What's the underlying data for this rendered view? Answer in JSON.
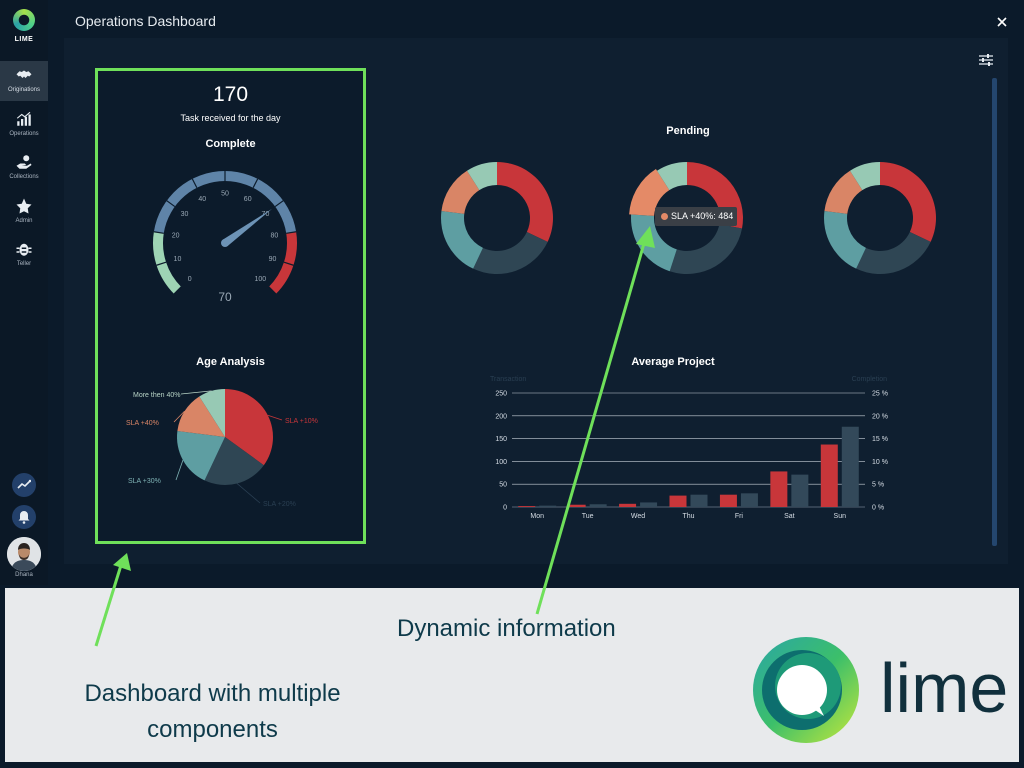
{
  "app": {
    "logo_text": "LIME",
    "window_title": "Operations Dashboard"
  },
  "sidebar": {
    "items": [
      {
        "label": "Originations",
        "icon": "handshake-icon",
        "active": true
      },
      {
        "label": "Operations",
        "icon": "bar-chart-icon",
        "active": false
      },
      {
        "label": "Collections",
        "icon": "hand-coin-icon",
        "active": false
      },
      {
        "label": "Admin",
        "icon": "star-icon",
        "active": false
      },
      {
        "label": "Teller",
        "icon": "bug-icon",
        "active": false
      }
    ],
    "user_name": "Dhana"
  },
  "summary": {
    "task_count": "170",
    "task_label": "Task received for the day"
  },
  "gauge": {
    "title": "Complete",
    "value": 70,
    "min": 0,
    "max": 100,
    "ticks": [
      "0",
      "10",
      "20",
      "30",
      "40",
      "50",
      "60",
      "70",
      "80",
      "90",
      "100"
    ],
    "value_label": "70"
  },
  "age_analysis": {
    "title": "Age Analysis"
  },
  "pending": {
    "title": "Pending",
    "tooltip": "SLA +40%: 484"
  },
  "average_project": {
    "title": "Average Project"
  },
  "chart_data": [
    {
      "type": "pie",
      "title": "Age Analysis",
      "slices": [
        {
          "label": "SLA +10%",
          "value": 35,
          "color": "#c8363a"
        },
        {
          "label": "SLA +20%",
          "value": 22,
          "color": "#2f4654"
        },
        {
          "label": "SLA +30%",
          "value": 20,
          "color": "#5e9ea2"
        },
        {
          "label": "SLA +40%",
          "value": 14,
          "color": "#d98566"
        },
        {
          "label": "More then 40%",
          "value": 9,
          "color": "#97c9b4"
        }
      ]
    },
    {
      "type": "pie",
      "title": "Pending",
      "donuts": [
        {
          "slices": [
            {
              "label": "SLA +10%",
              "value": 32,
              "color": "#c8363a"
            },
            {
              "label": "SLA +20%",
              "value": 25,
              "color": "#2f4654"
            },
            {
              "label": "SLA +30%",
              "value": 20,
              "color": "#5e9ea2"
            },
            {
              "label": "SLA +40%",
              "value": 14,
              "color": "#d98566"
            },
            {
              "label": "More then 40%",
              "value": 9,
              "color": "#97c9b4"
            }
          ]
        },
        {
          "slices": [
            {
              "label": "SLA +10%",
              "value": 28,
              "color": "#c8363a"
            },
            {
              "label": "SLA +20%",
              "value": 27,
              "color": "#2f4654"
            },
            {
              "label": "SLA +30%",
              "value": 21,
              "color": "#5e9ea2"
            },
            {
              "label": "SLA +40%",
              "value": 15,
              "color": "#e48a67",
              "highlighted": true
            },
            {
              "label": "More then 40%",
              "value": 9,
              "color": "#97c9b4"
            }
          ]
        },
        {
          "slices": [
            {
              "label": "SLA +10%",
              "value": 32,
              "color": "#c8363a"
            },
            {
              "label": "SLA +20%",
              "value": 25,
              "color": "#2f4654"
            },
            {
              "label": "SLA +30%",
              "value": 20,
              "color": "#5e9ea2"
            },
            {
              "label": "SLA +40%",
              "value": 14,
              "color": "#d98566"
            },
            {
              "label": "More then 40%",
              "value": 9,
              "color": "#97c9b4"
            }
          ]
        }
      ]
    },
    {
      "type": "bar",
      "title": "Average Project",
      "categories": [
        "Mon",
        "Tue",
        "Wed",
        "Thu",
        "Fri",
        "Sat",
        "Sun"
      ],
      "series": [
        {
          "name": "Transaction",
          "axis": "left",
          "color": "#c8363a",
          "values": [
            2,
            5,
            7,
            25,
            27,
            78,
            137
          ]
        },
        {
          "name": "Completion",
          "axis": "right",
          "color": "#33495a",
          "values": [
            0.3,
            0.6,
            1.0,
            2.7,
            3.0,
            7.1,
            17.6
          ]
        }
      ],
      "ylim": [
        0,
        250
      ],
      "y_ticks": [
        "0",
        "50",
        "100",
        "150",
        "200",
        "250"
      ],
      "ylim_right": [
        0,
        25
      ],
      "y_right_ticks": [
        "0 %",
        "5 %",
        "10 %",
        "15 %",
        "20 %",
        "25 %"
      ],
      "ylabel": "Transaction",
      "ylabel_right": "Completion"
    }
  ],
  "captions": {
    "dynamic": "Dynamic information",
    "dashboard": "Dashboard with multiple components"
  },
  "brand": {
    "wordmark": "lime"
  },
  "colors": {
    "highlight": "#6fe05a",
    "background": "#0b1a2a",
    "panel": "#0f1f30"
  }
}
